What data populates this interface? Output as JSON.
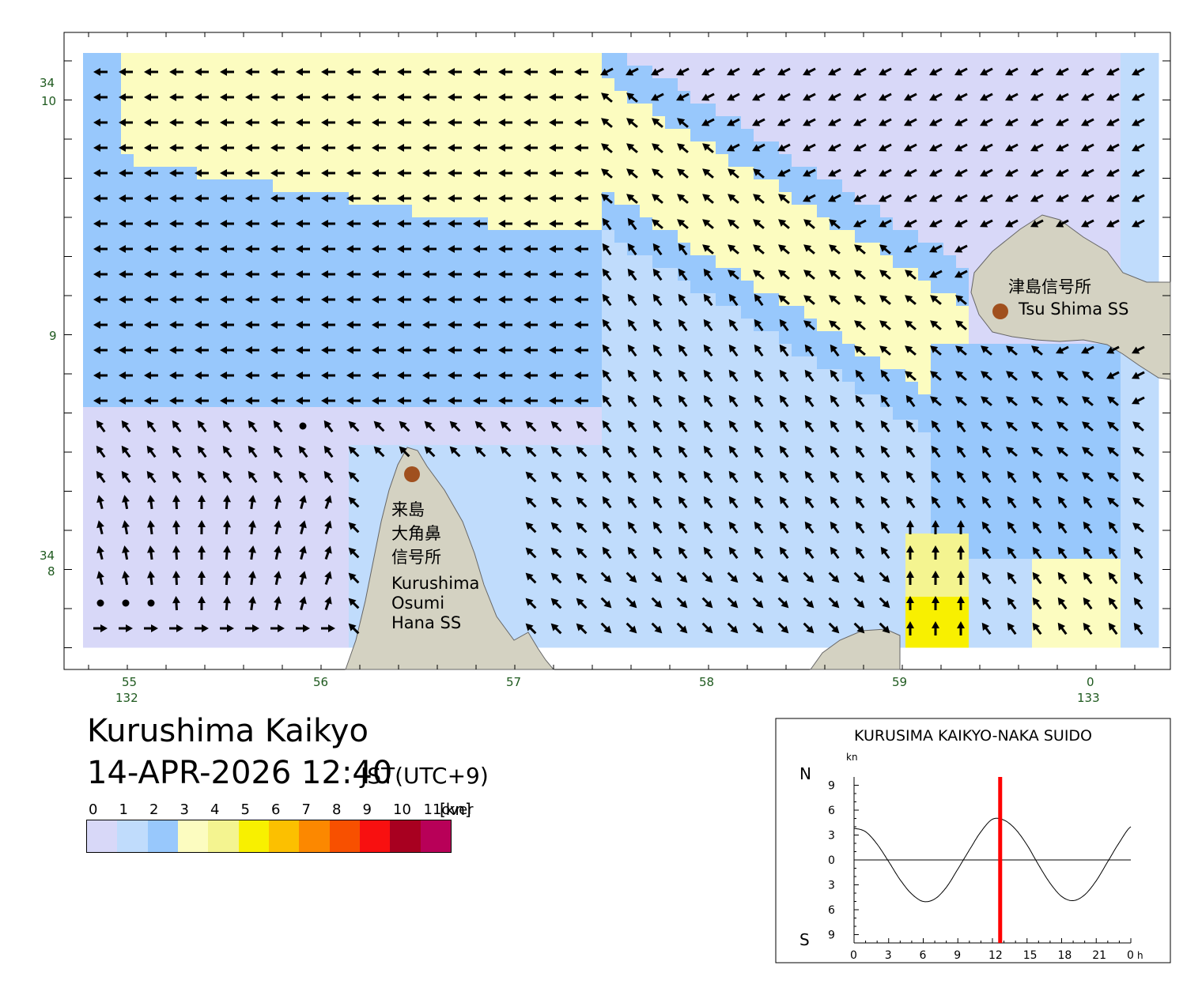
{
  "title": "Kurushima Kaikyo",
  "datetime": "14-APR-2026 12:40",
  "timezone": "JST(UTC+9)",
  "legend": {
    "ticks": [
      "0",
      "1",
      "2",
      "3",
      "4",
      "5",
      "6",
      "7",
      "8",
      "9",
      "10",
      "11over"
    ],
    "unit": "[kn]",
    "colors": [
      "#d8d8f8",
      "#c0dcfc",
      "#98c8fc",
      "#fcfcc0",
      "#f4f490",
      "#f8f000",
      "#fcc000",
      "#fc8800",
      "#f85000",
      "#f81010",
      "#a80020",
      "#b80058"
    ]
  },
  "map": {
    "lat_labels": [
      {
        "deg": "34",
        "min": "10"
      },
      {
        "deg": "",
        "min": "9"
      },
      {
        "deg": "34",
        "min": "8"
      }
    ],
    "lon_labels": [
      {
        "min": "55",
        "deg": "132"
      },
      {
        "min": "56",
        "deg": ""
      },
      {
        "min": "57",
        "deg": ""
      },
      {
        "min": "58",
        "deg": ""
      },
      {
        "min": "59",
        "deg": ""
      },
      {
        "min": "0",
        "deg": "133"
      }
    ],
    "stations": [
      {
        "name_jp": "津島信号所",
        "name_en": "Tsu Shima SS"
      },
      {
        "name_jp_lines": [
          "来島",
          "大角鼻",
          "信号所"
        ],
        "name_en_lines": [
          "Kurushima",
          "Osumi",
          "Hana SS"
        ]
      }
    ],
    "land_color": "#d4d2c2",
    "station_color": "#a0501e"
  },
  "tide_chart": {
    "title": "KURUSIMA KAIKYO-NAKA SUIDO",
    "unit": "kn",
    "north_label": "N",
    "south_label": "S",
    "marker_color": "#ff0000"
  },
  "chart_data": {
    "type": "line",
    "title": "KURUSIMA KAIKYO-NAKA SUIDO",
    "xlabel": "h",
    "ylabel": "kn",
    "x": [
      0,
      1,
      2,
      3,
      4,
      5,
      6,
      7,
      8,
      9,
      10,
      11,
      12,
      13,
      14,
      15,
      16,
      17,
      18,
      19,
      20,
      21,
      22,
      23,
      24
    ],
    "series": [
      {
        "values": [
          3.8,
          3.4,
          1.9,
          -0.2,
          -2.4,
          -4.1,
          -5.0,
          -4.7,
          -3.3,
          -1.1,
          1.2,
          3.4,
          4.9,
          4.8,
          3.7,
          1.8,
          -0.6,
          -2.8,
          -4.4,
          -4.9,
          -4.2,
          -2.5,
          -0.2,
          2.1,
          4.0
        ]
      }
    ],
    "xticks": [
      "0",
      "3",
      "6",
      "9",
      "12",
      "15",
      "18",
      "21",
      "0"
    ],
    "yticks_north": [
      "9",
      "6",
      "3"
    ],
    "ytick_zero": "0",
    "yticks_south": [
      "3",
      "6",
      "9"
    ],
    "ylim": [
      -10,
      10
    ],
    "xlim": [
      0,
      24
    ],
    "current_time_h": 12.67,
    "grid": false,
    "legend": "none"
  }
}
